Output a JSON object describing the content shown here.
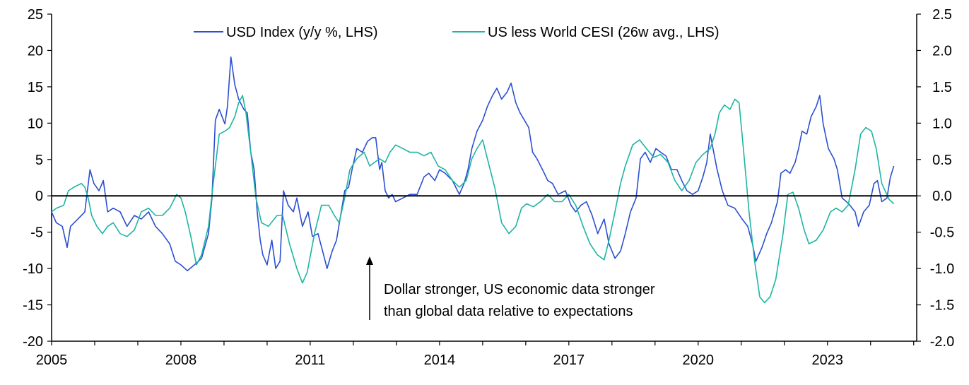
{
  "chart_data": {
    "type": "line",
    "title": "",
    "xlabel": "",
    "ylabel": "",
    "xlim": [
      2005,
      2025.07
    ],
    "ylim": [
      -20,
      25
    ],
    "y2lim": [
      -2.0,
      2.5
    ],
    "grid": false,
    "legend_position": "top-center",
    "x_ticks": [
      "2005",
      "2008",
      "2011",
      "2014",
      "2017",
      "2020",
      "2023"
    ],
    "y_ticks": [
      "25",
      "20",
      "15",
      "10",
      "5",
      "0",
      "-5",
      "-10",
      "-15",
      "-20"
    ],
    "y2_ticks": [
      "2.5",
      "2.0",
      "1.5",
      "1.0",
      "0.5",
      "0.0",
      "-0.5",
      "-1.0",
      "-1.5",
      "-2.0"
    ],
    "annotation": {
      "line1": "Dollar stronger, US economic data stronger",
      "line2": "than global data relative to expectations"
    },
    "series": [
      {
        "name": "USD Index (y/y %, LHS)",
        "axis": "left",
        "color": "#2b4fd1",
        "x": [
          2005.0,
          2005.11,
          2005.25,
          2005.36,
          2005.44,
          2005.61,
          2005.77,
          2005.89,
          2005.98,
          2006.1,
          2006.2,
          2006.3,
          2006.43,
          2006.59,
          2006.75,
          2006.92,
          2007.08,
          2007.25,
          2007.41,
          2007.57,
          2007.74,
          2007.87,
          2008.0,
          2008.15,
          2008.31,
          2008.48,
          2008.64,
          2008.72,
          2008.8,
          2008.89,
          2009.02,
          2009.08,
          2009.16,
          2009.25,
          2009.34,
          2009.46,
          2009.54,
          2009.62,
          2009.7,
          2009.77,
          2009.84,
          2009.9,
          2010.0,
          2010.11,
          2010.2,
          2010.3,
          2010.38,
          2010.49,
          2010.61,
          2010.69,
          2010.82,
          2010.95,
          2011.05,
          2011.18,
          2011.31,
          2011.39,
          2011.51,
          2011.61,
          2011.72,
          2011.8,
          2011.89,
          2011.97,
          2012.08,
          2012.21,
          2012.33,
          2012.44,
          2012.52,
          2012.61,
          2012.66,
          2012.74,
          2012.82,
          2012.9,
          2012.98,
          2013.15,
          2013.31,
          2013.48,
          2013.64,
          2013.75,
          2013.89,
          2014.0,
          2014.13,
          2014.3,
          2014.46,
          2014.57,
          2014.66,
          2014.75,
          2014.87,
          2015.0,
          2015.11,
          2015.23,
          2015.33,
          2015.44,
          2015.57,
          2015.66,
          2015.77,
          2015.87,
          2015.97,
          2016.07,
          2016.16,
          2016.26,
          2016.39,
          2016.51,
          2016.62,
          2016.75,
          2016.92,
          2017.05,
          2017.16,
          2017.28,
          2017.41,
          2017.54,
          2017.67,
          2017.82,
          2017.93,
          2018.07,
          2018.2,
          2018.31,
          2018.43,
          2018.56,
          2018.66,
          2018.77,
          2018.89,
          2019.02,
          2019.13,
          2019.25,
          2019.38,
          2019.51,
          2019.62,
          2019.74,
          2019.87,
          2020.0,
          2020.11,
          2020.2,
          2020.28,
          2020.36,
          2020.44,
          2020.56,
          2020.69,
          2020.85,
          2021.02,
          2021.15,
          2021.26,
          2021.34,
          2021.48,
          2021.59,
          2021.7,
          2021.84,
          2021.92,
          2022.03,
          2022.13,
          2022.25,
          2022.33,
          2022.41,
          2022.52,
          2022.62,
          2022.74,
          2022.82,
          2022.9,
          2023.02,
          2023.15,
          2023.23,
          2023.34,
          2023.44,
          2023.52,
          2023.64,
          2023.72,
          2023.84,
          2023.97,
          2024.08,
          2024.16,
          2024.26,
          2024.38,
          2024.46,
          2024.54
        ],
        "y": [
          -2.2,
          -3.7,
          -4.2,
          -7.1,
          -4.2,
          -3.2,
          -2.2,
          3.6,
          1.7,
          0.7,
          2.1,
          -2.2,
          -1.7,
          -2.2,
          -4.2,
          -2.7,
          -3.2,
          -2.2,
          -4.2,
          -5.2,
          -6.6,
          -9.0,
          -9.5,
          -10.3,
          -9.5,
          -8.6,
          -5.2,
          -0.3,
          10.4,
          11.9,
          9.9,
          12.3,
          19.1,
          15.3,
          13.3,
          11.9,
          11.4,
          6.0,
          3.6,
          -2.2,
          -6.1,
          -8.1,
          -9.5,
          -6.1,
          -10.0,
          -9.0,
          0.7,
          -1.3,
          -2.2,
          -0.3,
          -4.2,
          -2.2,
          -5.6,
          -5.2,
          -8.1,
          -10.0,
          -7.6,
          -6.1,
          -2.2,
          0.7,
          1.2,
          3.6,
          6.5,
          6.0,
          7.5,
          8.0,
          8.0,
          3.6,
          4.6,
          0.7,
          -0.3,
          0.2,
          -0.8,
          -0.3,
          0.2,
          0.2,
          2.6,
          3.1,
          2.1,
          3.6,
          3.1,
          2.1,
          0.2,
          1.7,
          3.6,
          6.5,
          8.9,
          10.4,
          12.3,
          13.8,
          14.8,
          13.3,
          14.3,
          15.5,
          12.8,
          11.4,
          10.4,
          9.4,
          6.0,
          5.1,
          3.6,
          2.1,
          1.7,
          0.2,
          0.7,
          -1.3,
          -2.2,
          -1.3,
          -0.8,
          -2.7,
          -5.2,
          -3.2,
          -6.6,
          -8.6,
          -7.6,
          -5.2,
          -2.2,
          -0.3,
          5.1,
          6.0,
          4.6,
          6.5,
          6.0,
          5.5,
          3.6,
          3.6,
          2.1,
          0.7,
          0.2,
          0.7,
          2.6,
          4.6,
          8.5,
          6.0,
          3.6,
          0.7,
          -1.3,
          -1.7,
          -3.2,
          -4.2,
          -6.6,
          -9.0,
          -7.1,
          -5.2,
          -3.7,
          -0.8,
          3.1,
          3.6,
          3.1,
          4.6,
          6.5,
          8.9,
          8.5,
          10.9,
          12.3,
          13.8,
          9.9,
          6.5,
          5.1,
          3.6,
          -0.3,
          -0.8,
          -1.3,
          -2.2,
          -4.2,
          -2.2,
          -1.3,
          1.7,
          2.1,
          -0.8,
          -0.3,
          2.6,
          4.1
        ]
      },
      {
        "name": "US less World CESI (26w avg., LHS)",
        "axis": "right",
        "color": "#1db5a3",
        "x": [
          2005.0,
          2005.11,
          2005.28,
          2005.39,
          2005.52,
          2005.69,
          2005.77,
          2005.85,
          2005.93,
          2006.05,
          2006.18,
          2006.3,
          2006.43,
          2006.59,
          2006.75,
          2006.92,
          2007.08,
          2007.25,
          2007.41,
          2007.57,
          2007.74,
          2007.9,
          2008.0,
          2008.1,
          2008.23,
          2008.36,
          2008.48,
          2008.64,
          2008.75,
          2008.89,
          2009.02,
          2009.13,
          2009.25,
          2009.34,
          2009.43,
          2009.51,
          2009.62,
          2009.74,
          2009.87,
          2010.03,
          2010.23,
          2010.36,
          2010.52,
          2010.69,
          2010.82,
          2010.93,
          2011.1,
          2011.26,
          2011.43,
          2011.56,
          2011.67,
          2011.8,
          2011.92,
          2012.08,
          2012.25,
          2012.38,
          2012.49,
          2012.61,
          2012.74,
          2012.85,
          2012.98,
          2013.15,
          2013.31,
          2013.48,
          2013.64,
          2013.8,
          2013.97,
          2014.13,
          2014.3,
          2014.46,
          2014.62,
          2014.75,
          2014.87,
          2015.0,
          2015.11,
          2015.28,
          2015.44,
          2015.61,
          2015.77,
          2015.9,
          2016.02,
          2016.18,
          2016.34,
          2016.51,
          2016.67,
          2016.84,
          2017.0,
          2017.16,
          2017.33,
          2017.49,
          2017.66,
          2017.82,
          2017.93,
          2018.07,
          2018.2,
          2018.31,
          2018.48,
          2018.64,
          2018.8,
          2018.97,
          2019.13,
          2019.3,
          2019.46,
          2019.62,
          2019.79,
          2019.95,
          2020.11,
          2020.28,
          2020.39,
          2020.49,
          2020.61,
          2020.74,
          2020.85,
          2020.95,
          2021.05,
          2021.18,
          2021.31,
          2021.43,
          2021.54,
          2021.67,
          2021.8,
          2021.97,
          2022.08,
          2022.2,
          2022.33,
          2022.46,
          2022.57,
          2022.74,
          2022.9,
          2023.07,
          2023.2,
          2023.34,
          2023.48,
          2023.64,
          2023.77,
          2023.89,
          2024.02,
          2024.13,
          2024.26,
          2024.43,
          2024.54
        ],
        "y": [
          -0.22,
          -0.17,
          -0.13,
          0.07,
          0.12,
          0.17,
          0.12,
          -0.03,
          -0.27,
          -0.42,
          -0.52,
          -0.42,
          -0.37,
          -0.52,
          -0.56,
          -0.47,
          -0.22,
          -0.17,
          -0.27,
          -0.27,
          -0.17,
          0.02,
          -0.03,
          -0.22,
          -0.56,
          -0.95,
          -0.81,
          -0.42,
          0.17,
          0.85,
          0.89,
          0.94,
          1.09,
          1.28,
          1.38,
          1.14,
          0.6,
          -0.03,
          -0.37,
          -0.42,
          -0.27,
          -0.27,
          -0.66,
          -1.0,
          -1.2,
          -1.05,
          -0.52,
          -0.13,
          -0.13,
          -0.27,
          -0.37,
          -0.03,
          0.36,
          0.51,
          0.6,
          0.41,
          0.46,
          0.51,
          0.46,
          0.6,
          0.7,
          0.65,
          0.6,
          0.6,
          0.55,
          0.6,
          0.41,
          0.36,
          0.21,
          0.12,
          0.21,
          0.51,
          0.65,
          0.77,
          0.51,
          0.12,
          -0.37,
          -0.52,
          -0.42,
          -0.17,
          -0.11,
          -0.15,
          -0.08,
          0.02,
          -0.08,
          -0.08,
          0.02,
          -0.13,
          -0.42,
          -0.66,
          -0.81,
          -0.88,
          -0.61,
          -0.22,
          0.17,
          0.41,
          0.7,
          0.77,
          0.65,
          0.53,
          0.57,
          0.46,
          0.21,
          0.07,
          0.21,
          0.46,
          0.57,
          0.65,
          0.85,
          1.14,
          1.25,
          1.19,
          1.33,
          1.28,
          0.65,
          -0.22,
          -0.9,
          -1.39,
          -1.47,
          -1.39,
          -1.15,
          -0.52,
          0.02,
          0.05,
          -0.17,
          -0.47,
          -0.66,
          -0.61,
          -0.47,
          -0.22,
          -0.17,
          -0.22,
          -0.13,
          0.36,
          0.85,
          0.94,
          0.89,
          0.65,
          0.17,
          -0.05,
          -0.11
        ]
      }
    ]
  }
}
